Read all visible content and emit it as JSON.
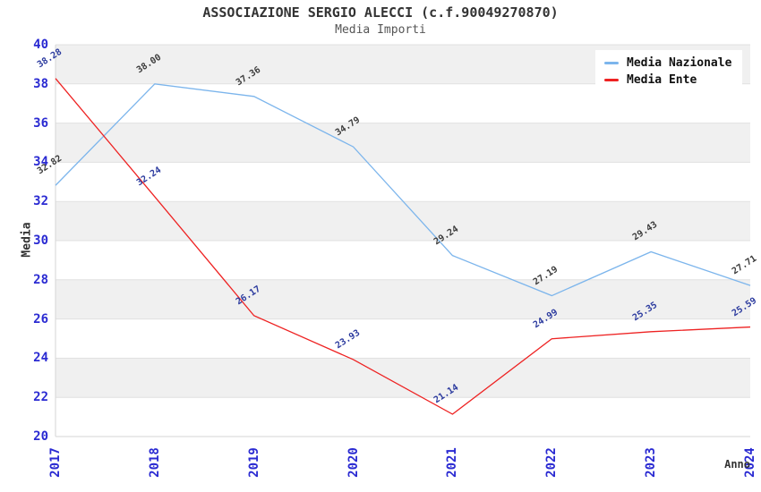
{
  "chart_data": {
    "type": "line",
    "title": "ASSOCIAZIONE SERGIO ALECCI (c.f.90049270870)",
    "subtitle": "Media Importi",
    "xlabel": "Anno",
    "ylabel": "Media",
    "categories": [
      "2017",
      "2018",
      "2019",
      "2020",
      "2021",
      "2022",
      "2023",
      "2024"
    ],
    "series": [
      {
        "name": "Media Nazionale",
        "color": "#7cb5ec",
        "label_color": "#3a3a3a",
        "values": [
          32.82,
          38.0,
          37.36,
          34.79,
          29.24,
          27.19,
          29.43,
          27.71
        ]
      },
      {
        "name": "Media Ente",
        "color": "#ee2222",
        "label_color": "#2b3a9e",
        "values": [
          38.28,
          32.24,
          26.17,
          23.93,
          21.14,
          24.99,
          25.35,
          25.59
        ]
      }
    ],
    "ylim": [
      20,
      40
    ],
    "ytick_step": 2,
    "grid": true,
    "legend_position": "top-right",
    "colors": {
      "background": "#ffffff",
      "band": "#f0f0f0",
      "gridline": "#e1e1e1",
      "axis_line": "#d6d6d6",
      "tick_label": "#2a2ad2",
      "title": "#333333",
      "subtitle": "#555555"
    }
  }
}
